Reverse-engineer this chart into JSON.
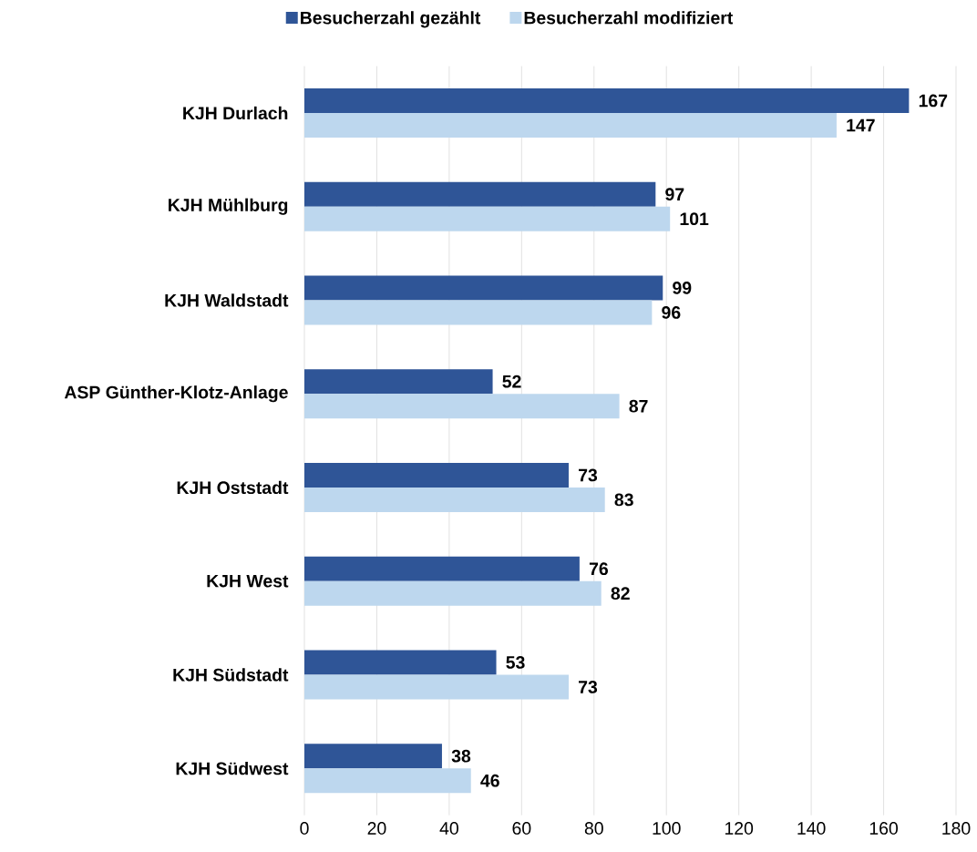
{
  "chart_data": {
    "type": "bar",
    "orientation": "horizontal",
    "categories": [
      "KJH Durlach",
      "KJH Mühlburg",
      "KJH Waldstadt",
      "ASP Günther-Klotz-Anlage",
      "KJH Oststadt",
      "KJH West",
      "KJH Südstadt",
      "KJH Südwest"
    ],
    "series": [
      {
        "name": "Besucherzahl gezählt",
        "color": "#2f5597",
        "values": [
          167,
          97,
          99,
          52,
          73,
          76,
          53,
          38
        ]
      },
      {
        "name": "Besucherzahl modifiziert",
        "color": "#bdd7ee",
        "values": [
          147,
          101,
          96,
          87,
          83,
          82,
          73,
          46
        ]
      }
    ],
    "xlim": [
      0,
      180
    ],
    "xticks": [
      0,
      20,
      40,
      60,
      80,
      100,
      120,
      140,
      160,
      180
    ],
    "grid": "x",
    "legend": "top",
    "data_labels": true
  }
}
